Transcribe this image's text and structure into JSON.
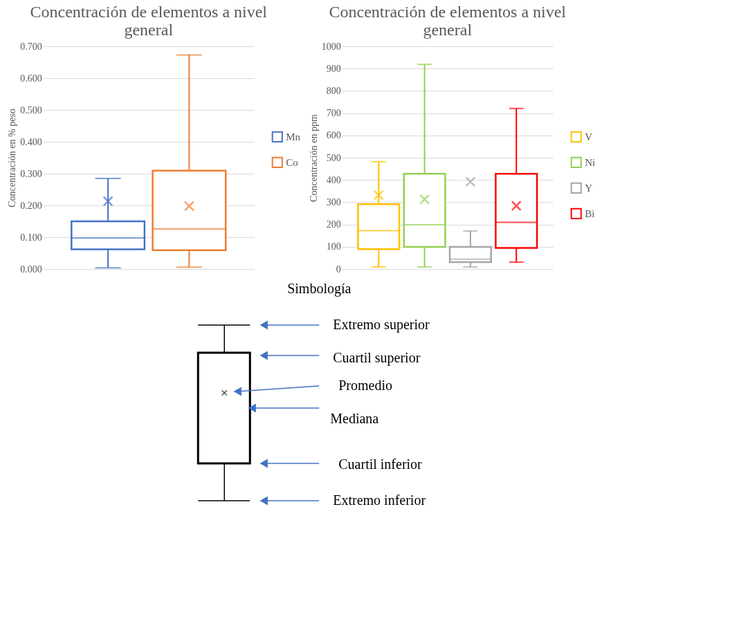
{
  "chart_data": [
    {
      "type": "box",
      "title": "Concentración de elementos a nivel general",
      "ylabel": "Concentración en % peso",
      "categories": [
        null
      ],
      "series": [
        {
          "name": "Mn",
          "color": "#4472c4",
          "boxes": [
            {
              "low": 0.004,
              "q1": 0.062,
              "median": 0.098,
              "q3": 0.15,
              "high": 0.285,
              "mean": 0.213
            }
          ]
        },
        {
          "name": "Co",
          "color": "#ed7d31",
          "boxes": [
            {
              "low": 0.006,
              "q1": 0.059,
              "median": 0.126,
              "q3": 0.309,
              "high": 0.673,
              "mean": 0.198
            }
          ]
        }
      ],
      "ylim": [
        0,
        0.7
      ],
      "yticks": [
        {
          "value": 0,
          "label": "0.000"
        },
        {
          "value": 0.1,
          "label": "0.100"
        },
        {
          "value": 0.2,
          "label": "0.200"
        },
        {
          "value": 0.3,
          "label": "0.300"
        },
        {
          "value": 0.4,
          "label": "0.400"
        },
        {
          "value": 0.5,
          "label": "0.500"
        },
        {
          "value": 0.6,
          "label": "0.600"
        },
        {
          "value": 0.7,
          "label": "0.700"
        }
      ],
      "grid": "y",
      "legend": "right",
      "tick_labels": "y"
    },
    {
      "type": "box",
      "title": "Concentración de elementos a nivel general",
      "ylabel": "Concentración en ppm",
      "categories": [
        null
      ],
      "series": [
        {
          "name": "V",
          "color": "#ffc000",
          "boxes": [
            {
              "low": 9,
              "q1": 89,
              "median": 172,
              "q3": 291,
              "high": 482,
              "mean": 332
            }
          ]
        },
        {
          "name": "Ni",
          "color": "#92d050",
          "boxes": [
            {
              "low": 9,
              "q1": 99,
              "median": 199,
              "q3": 428,
              "high": 919,
              "mean": 313
            }
          ]
        },
        {
          "name": "Y",
          "color": "#a5a5a5",
          "boxes": [
            {
              "low": 9,
              "q1": 31,
              "median": 44,
              "q3": 99,
              "high": 171,
              "mean": 392
            }
          ]
        },
        {
          "name": "Bi",
          "color": "#ff0000",
          "boxes": [
            {
              "low": 31,
              "q1": 95,
              "median": 210,
              "q3": 428,
              "high": 721,
              "mean": 284
            }
          ]
        }
      ],
      "ylim": [
        0,
        1000
      ],
      "yticks": [
        0,
        100,
        200,
        300,
        400,
        500,
        600,
        700,
        800,
        900,
        1000
      ],
      "grid": "y",
      "legend": "right",
      "tick_labels": "y"
    },
    {
      "type": "other",
      "title": "Simbología",
      "annotations": [
        "Extremo superior",
        "Cuartil superior",
        "Promedio",
        "Mediana",
        "Cuartil inferior",
        "Extremo inferior"
      ]
    }
  ]
}
